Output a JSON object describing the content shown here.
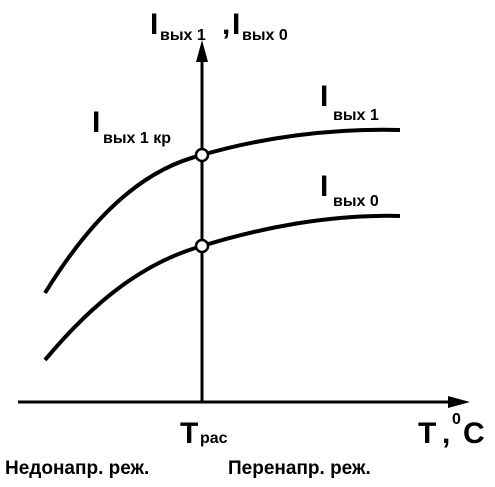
{
  "y_axis_label": {
    "first": {
      "main": "I",
      "sub": "вых 1"
    },
    "separator": ",",
    "second": {
      "main": "I",
      "sub": "вых 0"
    }
  },
  "x_axis_label": {
    "main": "T",
    "separator": ",",
    "sup": "0",
    "unit": "C"
  },
  "point_label": {
    "main": "I",
    "sub": "вых 1 кр"
  },
  "curve_labels": [
    {
      "main": "I",
      "sub": "вых 1"
    },
    {
      "main": "I",
      "sub": "вых 0"
    }
  ],
  "x_marker": {
    "main": "T",
    "sub": "рас"
  },
  "regions": [
    "Недонапр. реж.",
    "Перенапр. реж."
  ]
}
